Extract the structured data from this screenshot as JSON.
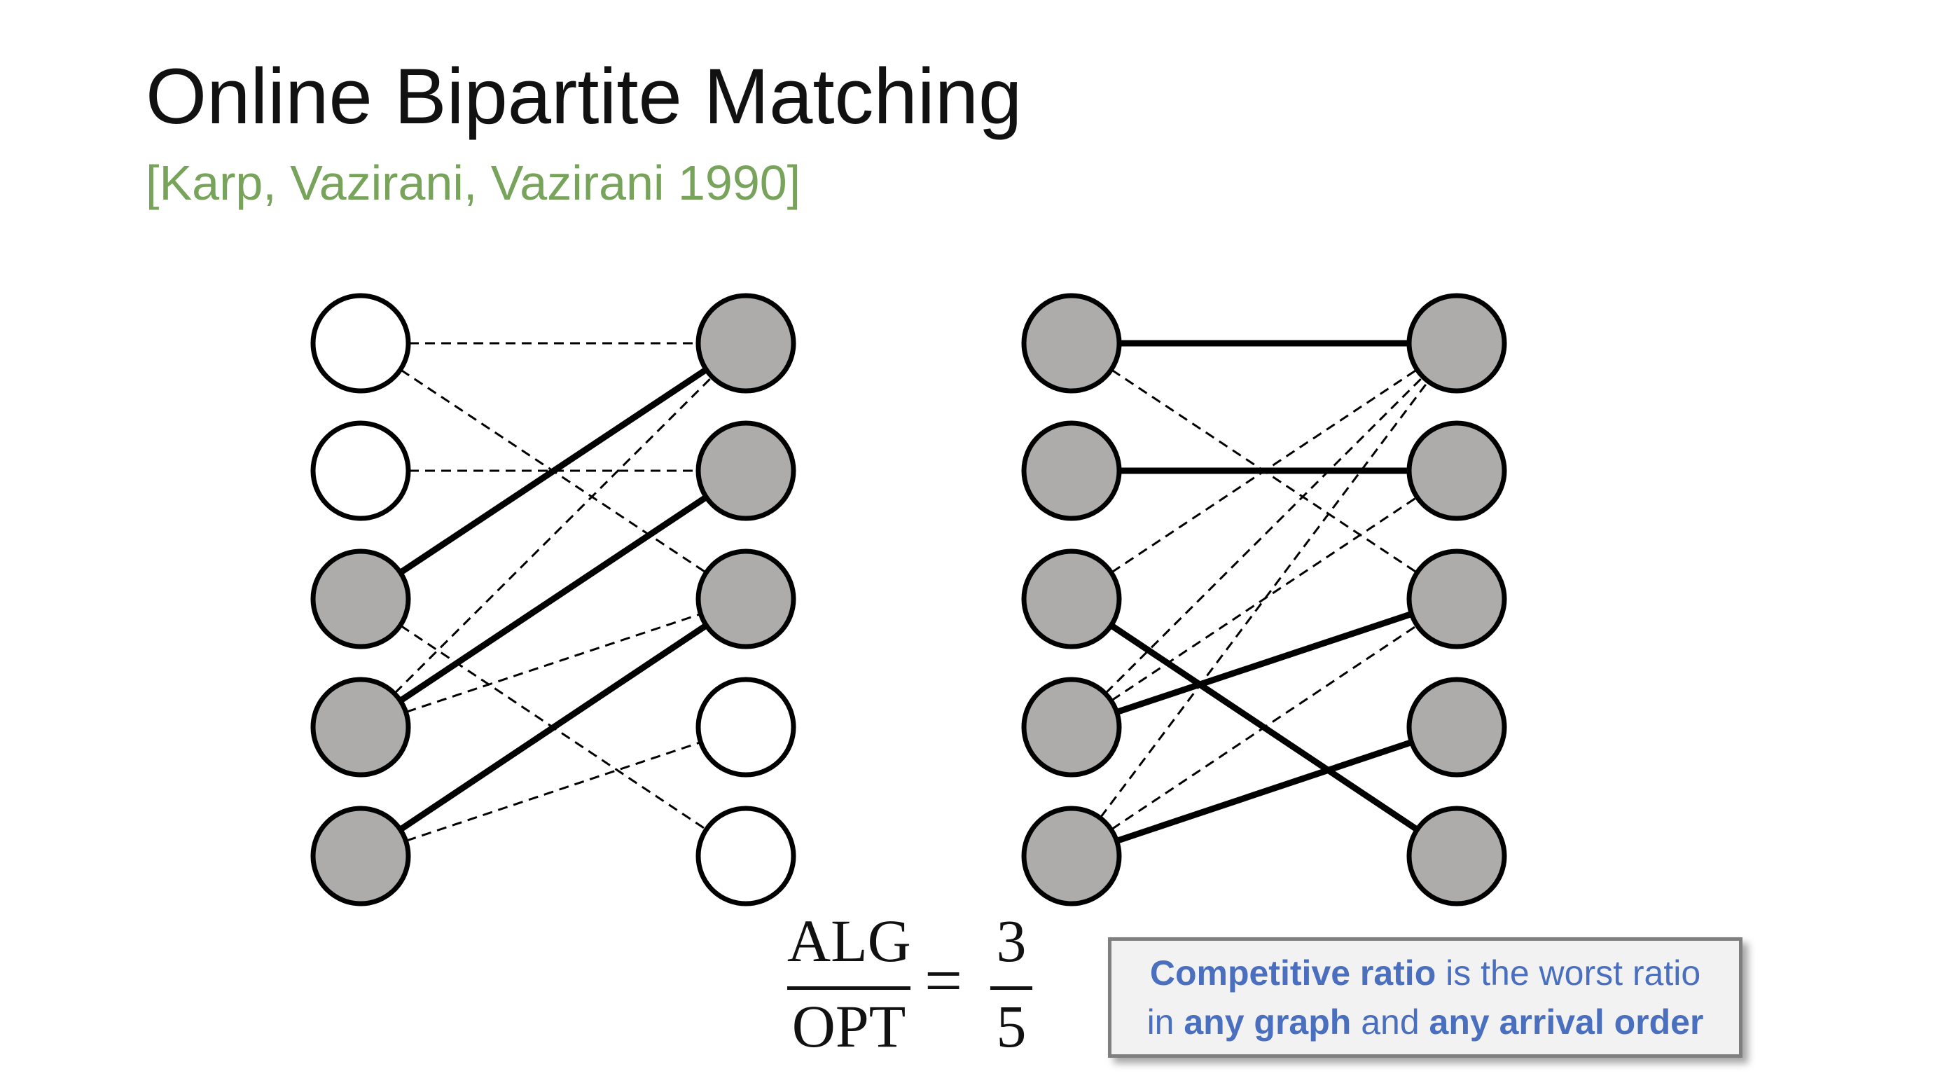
{
  "title": "Online Bipartite Matching",
  "citation": "[Karp, Vazirani, Vazirani 1990]",
  "colors": {
    "citation": "#77a35a",
    "node_filled": "#aeabab",
    "node_empty": "#ffffff",
    "stroke": "#000000",
    "callout_text": "#4a6fbf",
    "callout_bg": "#f2f2f2",
    "callout_border": "#7f7f7f"
  },
  "left_graph": {
    "left_nodes_filled": [
      false,
      false,
      true,
      true,
      true
    ],
    "right_nodes_filled": [
      true,
      true,
      true,
      false,
      false
    ],
    "dashed_edges": [
      [
        0,
        0
      ],
      [
        0,
        2
      ],
      [
        1,
        1
      ],
      [
        2,
        4
      ],
      [
        3,
        0
      ],
      [
        3,
        2
      ],
      [
        4,
        3
      ]
    ],
    "matched_edges": [
      [
        2,
        0
      ],
      [
        3,
        1
      ],
      [
        4,
        2
      ]
    ]
  },
  "right_graph": {
    "left_nodes_filled": [
      true,
      true,
      true,
      true,
      true
    ],
    "right_nodes_filled": [
      true,
      true,
      true,
      true,
      true
    ],
    "dashed_edges": [
      [
        0,
        2
      ],
      [
        2,
        0
      ],
      [
        3,
        0
      ],
      [
        3,
        1
      ],
      [
        4,
        0
      ],
      [
        4,
        2
      ]
    ],
    "matched_edges": [
      [
        0,
        0
      ],
      [
        1,
        1
      ],
      [
        2,
        4
      ],
      [
        3,
        2
      ],
      [
        4,
        3
      ]
    ]
  },
  "formula": {
    "numerator": "ALG",
    "denominator": "OPT",
    "equals": "=",
    "value_numerator": "3",
    "value_denominator": "5"
  },
  "callout": {
    "line1_bold": "Competitive ratio",
    "line1_rest": " is the worst ratio",
    "line2_a": "in ",
    "line2_bold1": "any graph",
    "line2_b": " and ",
    "line2_bold2": "any arrival order"
  }
}
